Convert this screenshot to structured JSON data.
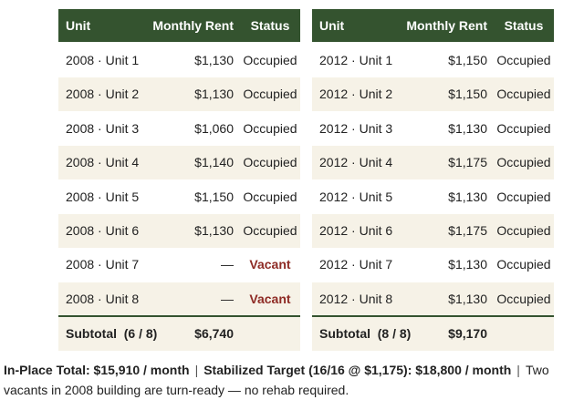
{
  "tables": [
    {
      "header": [
        "Unit",
        "Monthly Rent",
        "Status"
      ],
      "rows": [
        [
          "2008 · Unit 1",
          "$1,130",
          "Occupied"
        ],
        [
          "2008 · Unit 2",
          "$1,130",
          "Occupied"
        ],
        [
          "2008 · Unit 3",
          "$1,060",
          "Occupied"
        ],
        [
          "2008 · Unit 4",
          "$1,140",
          "Occupied"
        ],
        [
          "2008 · Unit 5",
          "$1,150",
          "Occupied"
        ],
        [
          "2008 · Unit 6",
          "$1,130",
          "Occupied"
        ],
        [
          "2008 · Unit 7",
          "—",
          "Vacant"
        ],
        [
          "2008 · Unit 8",
          "—",
          "Vacant"
        ]
      ],
      "subtotal": {
        "label": "Subtotal  (6 / 8)",
        "total": "$6,740"
      }
    },
    {
      "header": [
        "Unit",
        "Monthly Rent",
        "Status"
      ],
      "rows": [
        [
          "2012 · Unit 1",
          "$1,150",
          "Occupied"
        ],
        [
          "2012 · Unit 2",
          "$1,150",
          "Occupied"
        ],
        [
          "2012 · Unit 3",
          "$1,130",
          "Occupied"
        ],
        [
          "2012 · Unit 4",
          "$1,175",
          "Occupied"
        ],
        [
          "2012 · Unit 5",
          "$1,130",
          "Occupied"
        ],
        [
          "2012 · Unit 6",
          "$1,175",
          "Occupied"
        ],
        [
          "2012 · Unit 7",
          "$1,130",
          "Occupied"
        ],
        [
          "2012 · Unit 8",
          "$1,130",
          "Occupied"
        ]
      ],
      "subtotal": {
        "label": "Subtotal  (8 / 8)",
        "total": "$9,170"
      }
    }
  ],
  "footer": [
    "In-Place Total: $15,910 / month",
    "|",
    "Stabilized Target (16/16 @ $1,175): $18,800 / month",
    "|",
    "Two vacants in 2008 building are turn-ready — no rehab required."
  ]
}
